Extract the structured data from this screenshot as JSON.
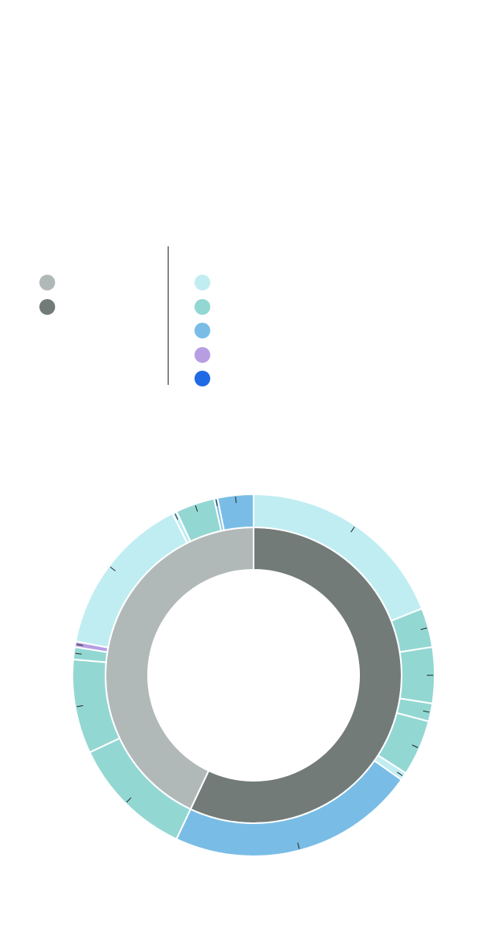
{
  "chart_data": {
    "type": "pie",
    "variant": "nested-donut",
    "title": "",
    "legend": {
      "placement": "top",
      "inner_ring": [
        {
          "name": "",
          "color": "#b1b9b8"
        },
        {
          "name": "",
          "color": "#737b79"
        }
      ],
      "outer_ring": [
        {
          "name": "",
          "color": "#c0edf2"
        },
        {
          "name": "",
          "color": "#93d7d3"
        },
        {
          "name": "",
          "color": "#79bde6"
        },
        {
          "name": "",
          "color": "#b79ee3"
        },
        {
          "name": "",
          "color": "#216ae6"
        }
      ]
    },
    "inner_ring": [
      {
        "name": "",
        "value": 57.0,
        "color": "#737b79"
      },
      {
        "name": "",
        "value": 43.0,
        "color": "#b1b9b8"
      }
    ],
    "outer_ring": [
      {
        "name": "",
        "value": 19.0,
        "color": "#c0edf2"
      },
      {
        "name": "",
        "value": 3.5,
        "color": "#93d7d3"
      },
      {
        "name": "",
        "value": 5.0,
        "color": "#93d7d3"
      },
      {
        "name": "",
        "value": 1.6,
        "color": "#93d7d3"
      },
      {
        "name": "",
        "value": 5.0,
        "color": "#93d7d3"
      },
      {
        "name": "",
        "value": 0.7,
        "color": "#c0edf2"
      },
      {
        "name": "",
        "value": 22.2,
        "color": "#79bde6"
      },
      {
        "name": "",
        "value": 11.0,
        "color": "#93d7d3"
      },
      {
        "name": "",
        "value": 8.4,
        "color": "#93d7d3"
      },
      {
        "name": "",
        "value": 1.1,
        "color": "#93d7d3"
      },
      {
        "name": "",
        "value": 0.5,
        "color": "#b79ee3"
      },
      {
        "name": "",
        "value": 14.6,
        "color": "#c0edf2"
      },
      {
        "name": "",
        "value": 0.4,
        "color": "#c0edf2"
      },
      {
        "name": "",
        "value": 3.5,
        "color": "#93d7d3"
      },
      {
        "name": "",
        "value": 0.3,
        "color": "#79bde6"
      },
      {
        "name": "",
        "value": 3.2,
        "color": "#79bde6"
      }
    ]
  }
}
